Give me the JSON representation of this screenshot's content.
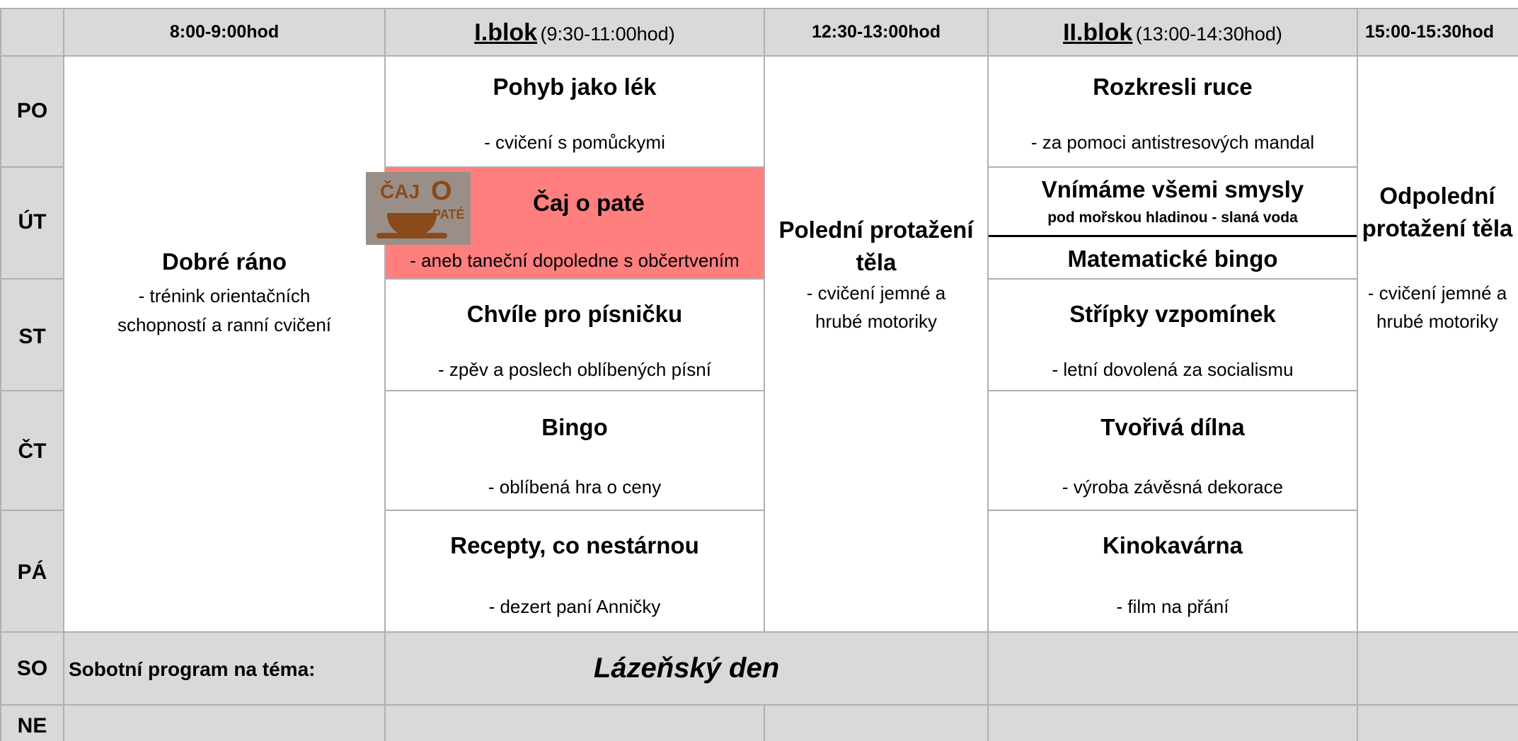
{
  "header": {
    "col1": "8:00-9:00hod",
    "block1": {
      "name": "I.blok",
      "time": "(9:30-11:00hod)"
    },
    "col3": "12:30-13:00hod",
    "block2": {
      "name": "II.blok",
      "time": "(13:00-14:30hod)"
    },
    "col5": "15:00-15:30hod"
  },
  "days": [
    "PO",
    "ÚT",
    "ST",
    "ČT",
    "PÁ",
    "SO",
    "NE"
  ],
  "morning": {
    "title": "Dobré ráno",
    "desc": "- trénink orientačních schopností a ranní cvičení"
  },
  "block1": [
    {
      "title": "Pohyb jako lék",
      "desc": "- cvičení s pomůckymi"
    },
    {
      "title": "Čaj o paté",
      "desc": "- aneb taneční dopoledne s občertvením",
      "logo": [
        "ČAJ",
        "O",
        "PATÉ"
      ]
    },
    {
      "title": "Chvíle pro písničku",
      "desc": "- zpěv a poslech oblíbených písní"
    },
    {
      "title": "Bingo",
      "desc": "- oblíbená hra o ceny"
    },
    {
      "title": "Recepty, co nestárnou",
      "desc": "- dezert paní Anničky"
    }
  ],
  "noon": {
    "title": "Polední protažení těla",
    "desc": "- cvičení jemné a hrubé motoriky"
  },
  "block2": [
    {
      "title": "Rozkresli ruce",
      "desc": "- za pomoci antistresových mandal"
    },
    {
      "title": "Vnímáme všemi smysly",
      "desc": "pod mořskou hladinou - slaná voda",
      "title2": "Matematické bingo"
    },
    {
      "title": "Střípky vzpomínek",
      "desc": "- letní dovolená za socialismu"
    },
    {
      "title": "Tvořivá dílna",
      "desc": "- výroba závěsná dekorace"
    },
    {
      "title": "Kinokavárna",
      "desc": "- film na přání"
    }
  ],
  "afternoon": {
    "title": "Odpolední protažení těla",
    "desc": "- cvičení jemné a hrubé motoriky"
  },
  "saturday": {
    "label": "Sobotní program na téma:",
    "theme": "Lázeňský den"
  }
}
